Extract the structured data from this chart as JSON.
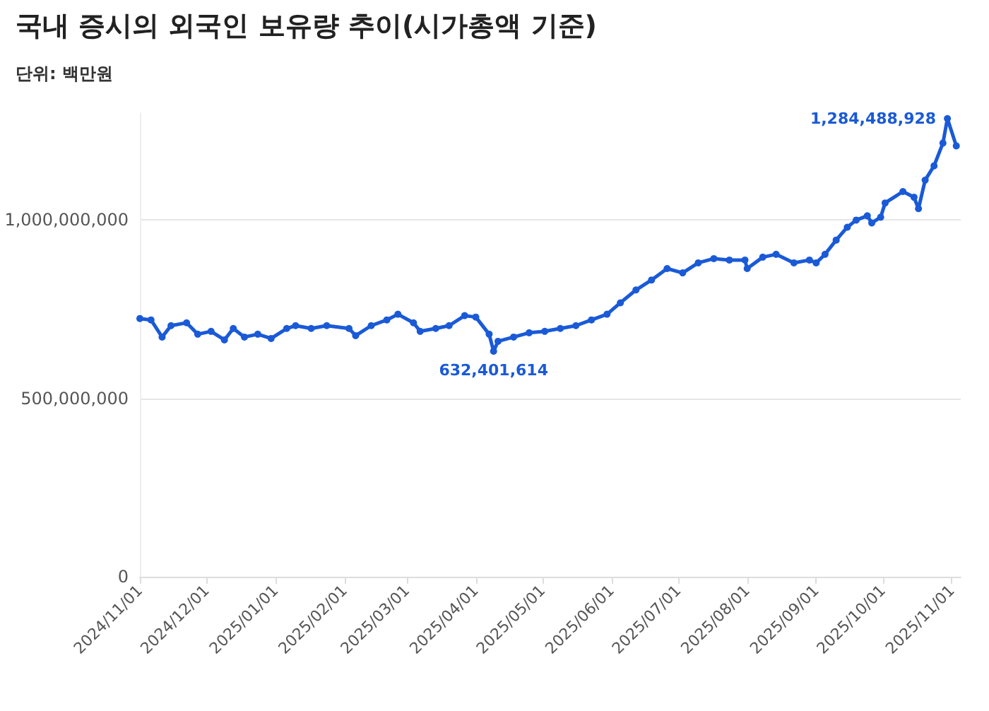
{
  "chart_data": {
    "type": "line",
    "title": "국내 증시의 외국인 보유량 추이(시가총액 기준)",
    "subtitle": "단위: 백만원",
    "x": [
      "2024-11-01",
      "2024-11-06",
      "2024-11-11",
      "2024-11-15",
      "2024-11-22",
      "2024-11-27",
      "2024-12-03",
      "2024-12-09",
      "2024-12-13",
      "2024-12-18",
      "2024-12-24",
      "2024-12-30",
      "2025-01-06",
      "2025-01-10",
      "2025-01-17",
      "2025-01-24",
      "2025-02-03",
      "2025-02-06",
      "2025-02-13",
      "2025-02-20",
      "2025-02-25",
      "2025-03-04",
      "2025-03-07",
      "2025-03-14",
      "2025-03-20",
      "2025-03-27",
      "2025-04-01",
      "2025-04-07",
      "2025-04-09",
      "2025-04-11",
      "2025-04-18",
      "2025-04-25",
      "2025-05-02",
      "2025-05-09",
      "2025-05-16",
      "2025-05-23",
      "2025-05-30",
      "2025-06-05",
      "2025-06-12",
      "2025-06-19",
      "2025-06-26",
      "2025-07-03",
      "2025-07-10",
      "2025-07-17",
      "2025-07-24",
      "2025-07-31",
      "2025-08-01",
      "2025-08-08",
      "2025-08-14",
      "2025-08-22",
      "2025-08-29",
      "2025-09-01",
      "2025-09-05",
      "2025-09-10",
      "2025-09-15",
      "2025-09-19",
      "2025-09-24",
      "2025-09-26",
      "2025-09-30",
      "2025-10-02",
      "2025-10-10",
      "2025-10-15",
      "2025-10-17",
      "2025-10-20",
      "2025-10-24",
      "2025-10-28",
      "2025-10-30",
      "2025-11-03"
    ],
    "series": [
      {
        "color": "#1a5ad7",
        "values": [
          724000000,
          720000000,
          672000000,
          704000000,
          712000000,
          680000000,
          688000000,
          664000000,
          696000000,
          672000000,
          680000000,
          668000000,
          696000000,
          704000000,
          696000000,
          704000000,
          696000000,
          676000000,
          704000000,
          720000000,
          736000000,
          712000000,
          688000000,
          696000000,
          704000000,
          732000000,
          728000000,
          680000000,
          632401614,
          660000000,
          672000000,
          684000000,
          688000000,
          696000000,
          704000000,
          720000000,
          736000000,
          768000000,
          804000000,
          832000000,
          864000000,
          852000000,
          880000000,
          892000000,
          888000000,
          888000000,
          864000000,
          896000000,
          904000000,
          880000000,
          888000000,
          880000000,
          904000000,
          944000000,
          980000000,
          1000000000,
          1012000000,
          992000000,
          1008000000,
          1048000000,
          1080000000,
          1064000000,
          1032000000,
          1112000000,
          1152000000,
          1216000000,
          1284488928,
          1208000000
        ]
      }
    ],
    "xlim": [
      "2024-11-01",
      "2025-11-05"
    ],
    "xticks": [
      {
        "value": "2024-11-01",
        "label": "2024/11/01"
      },
      {
        "value": "2024-12-01",
        "label": "2024/12/01"
      },
      {
        "value": "2025-01-01",
        "label": "2025/01/01"
      },
      {
        "value": "2025-02-01",
        "label": "2025/02/01"
      },
      {
        "value": "2025-03-01",
        "label": "2025/03/01"
      },
      {
        "value": "2025-04-01",
        "label": "2025/04/01"
      },
      {
        "value": "2025-05-01",
        "label": "2025/05/01"
      },
      {
        "value": "2025-06-01",
        "label": "2025/06/01"
      },
      {
        "value": "2025-07-01",
        "label": "2025/07/01"
      },
      {
        "value": "2025-08-01",
        "label": "2025/08/01"
      },
      {
        "value": "2025-09-01",
        "label": "2025/09/01"
      },
      {
        "value": "2025-10-01",
        "label": "2025/10/01"
      },
      {
        "value": "2025-11-01",
        "label": "2025/11/01"
      }
    ],
    "ylim": [
      0,
      1300000000
    ],
    "yticks": [
      0,
      {
        "value": 500000000,
        "label": "500,000,000"
      },
      {
        "value": 1000000000,
        "label": "1,000,000,000"
      }
    ],
    "annotations": [
      {
        "text": "632,401,614",
        "x": "2025-04-09",
        "y": 632401614
      },
      {
        "text": "1,284,488,928",
        "x": "2025-10-30",
        "y": 1284488928
      }
    ],
    "grid": "y",
    "marker": "circle",
    "line_style": "solid"
  }
}
